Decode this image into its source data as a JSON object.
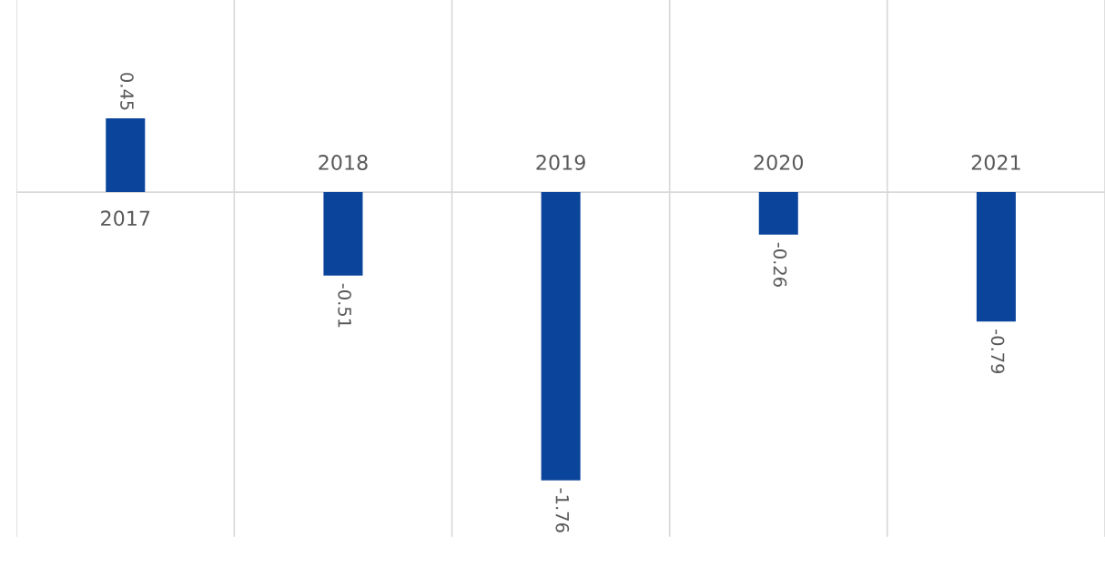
{
  "chart_data": {
    "type": "bar",
    "categories": [
      "2017",
      "2018",
      "2019",
      "2020",
      "2021"
    ],
    "values": [
      0.45,
      -0.51,
      -1.76,
      -0.26,
      -0.79
    ],
    "color": "#0b449b",
    "relative": false,
    "data_labels": true,
    "grid": "x"
  }
}
